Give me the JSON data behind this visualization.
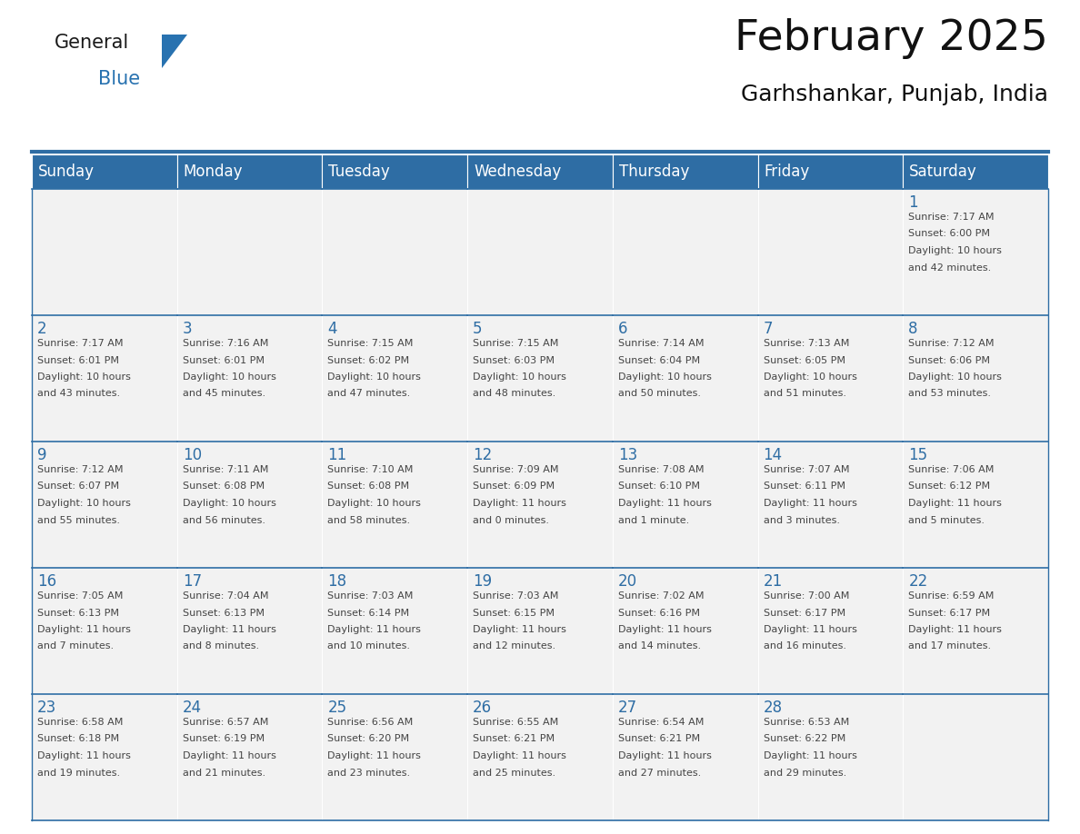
{
  "title": "February 2025",
  "subtitle": "Garhshankar, Punjab, India",
  "header_bg": "#2E6DA4",
  "header_text_color": "#FFFFFF",
  "cell_bg": "#F2F2F2",
  "day_number_color": "#2E6DA4",
  "text_color": "#444444",
  "border_color": "#2E6DA4",
  "days_of_week": [
    "Sunday",
    "Monday",
    "Tuesday",
    "Wednesday",
    "Thursday",
    "Friday",
    "Saturday"
  ],
  "weeks": [
    [
      {
        "day": null,
        "info": null
      },
      {
        "day": null,
        "info": null
      },
      {
        "day": null,
        "info": null
      },
      {
        "day": null,
        "info": null
      },
      {
        "day": null,
        "info": null
      },
      {
        "day": null,
        "info": null
      },
      {
        "day": 1,
        "info": "Sunrise: 7:17 AM\nSunset: 6:00 PM\nDaylight: 10 hours\nand 42 minutes."
      }
    ],
    [
      {
        "day": 2,
        "info": "Sunrise: 7:17 AM\nSunset: 6:01 PM\nDaylight: 10 hours\nand 43 minutes."
      },
      {
        "day": 3,
        "info": "Sunrise: 7:16 AM\nSunset: 6:01 PM\nDaylight: 10 hours\nand 45 minutes."
      },
      {
        "day": 4,
        "info": "Sunrise: 7:15 AM\nSunset: 6:02 PM\nDaylight: 10 hours\nand 47 minutes."
      },
      {
        "day": 5,
        "info": "Sunrise: 7:15 AM\nSunset: 6:03 PM\nDaylight: 10 hours\nand 48 minutes."
      },
      {
        "day": 6,
        "info": "Sunrise: 7:14 AM\nSunset: 6:04 PM\nDaylight: 10 hours\nand 50 minutes."
      },
      {
        "day": 7,
        "info": "Sunrise: 7:13 AM\nSunset: 6:05 PM\nDaylight: 10 hours\nand 51 minutes."
      },
      {
        "day": 8,
        "info": "Sunrise: 7:12 AM\nSunset: 6:06 PM\nDaylight: 10 hours\nand 53 minutes."
      }
    ],
    [
      {
        "day": 9,
        "info": "Sunrise: 7:12 AM\nSunset: 6:07 PM\nDaylight: 10 hours\nand 55 minutes."
      },
      {
        "day": 10,
        "info": "Sunrise: 7:11 AM\nSunset: 6:08 PM\nDaylight: 10 hours\nand 56 minutes."
      },
      {
        "day": 11,
        "info": "Sunrise: 7:10 AM\nSunset: 6:08 PM\nDaylight: 10 hours\nand 58 minutes."
      },
      {
        "day": 12,
        "info": "Sunrise: 7:09 AM\nSunset: 6:09 PM\nDaylight: 11 hours\nand 0 minutes."
      },
      {
        "day": 13,
        "info": "Sunrise: 7:08 AM\nSunset: 6:10 PM\nDaylight: 11 hours\nand 1 minute."
      },
      {
        "day": 14,
        "info": "Sunrise: 7:07 AM\nSunset: 6:11 PM\nDaylight: 11 hours\nand 3 minutes."
      },
      {
        "day": 15,
        "info": "Sunrise: 7:06 AM\nSunset: 6:12 PM\nDaylight: 11 hours\nand 5 minutes."
      }
    ],
    [
      {
        "day": 16,
        "info": "Sunrise: 7:05 AM\nSunset: 6:13 PM\nDaylight: 11 hours\nand 7 minutes."
      },
      {
        "day": 17,
        "info": "Sunrise: 7:04 AM\nSunset: 6:13 PM\nDaylight: 11 hours\nand 8 minutes."
      },
      {
        "day": 18,
        "info": "Sunrise: 7:03 AM\nSunset: 6:14 PM\nDaylight: 11 hours\nand 10 minutes."
      },
      {
        "day": 19,
        "info": "Sunrise: 7:03 AM\nSunset: 6:15 PM\nDaylight: 11 hours\nand 12 minutes."
      },
      {
        "day": 20,
        "info": "Sunrise: 7:02 AM\nSunset: 6:16 PM\nDaylight: 11 hours\nand 14 minutes."
      },
      {
        "day": 21,
        "info": "Sunrise: 7:00 AM\nSunset: 6:17 PM\nDaylight: 11 hours\nand 16 minutes."
      },
      {
        "day": 22,
        "info": "Sunrise: 6:59 AM\nSunset: 6:17 PM\nDaylight: 11 hours\nand 17 minutes."
      }
    ],
    [
      {
        "day": 23,
        "info": "Sunrise: 6:58 AM\nSunset: 6:18 PM\nDaylight: 11 hours\nand 19 minutes."
      },
      {
        "day": 24,
        "info": "Sunrise: 6:57 AM\nSunset: 6:19 PM\nDaylight: 11 hours\nand 21 minutes."
      },
      {
        "day": 25,
        "info": "Sunrise: 6:56 AM\nSunset: 6:20 PM\nDaylight: 11 hours\nand 23 minutes."
      },
      {
        "day": 26,
        "info": "Sunrise: 6:55 AM\nSunset: 6:21 PM\nDaylight: 11 hours\nand 25 minutes."
      },
      {
        "day": 27,
        "info": "Sunrise: 6:54 AM\nSunset: 6:21 PM\nDaylight: 11 hours\nand 27 minutes."
      },
      {
        "day": 28,
        "info": "Sunrise: 6:53 AM\nSunset: 6:22 PM\nDaylight: 11 hours\nand 29 minutes."
      },
      {
        "day": null,
        "info": null
      }
    ]
  ],
  "logo_general_color": "#1a1a1a",
  "logo_blue_color": "#2872B0",
  "title_fontsize": 34,
  "subtitle_fontsize": 18,
  "header_fontsize": 12,
  "day_number_fontsize": 12,
  "cell_text_fontsize": 8
}
